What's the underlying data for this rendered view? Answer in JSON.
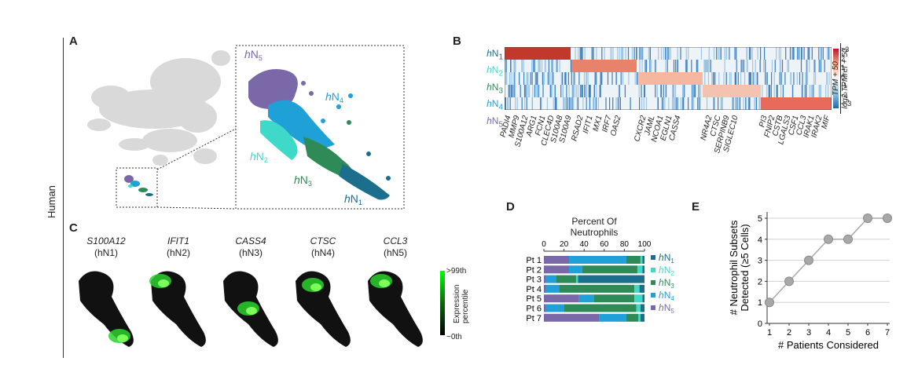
{
  "side_label": "Human",
  "panels": {
    "A": {
      "letter": "A",
      "clusters": [
        {
          "label": "hN1",
          "color": "#1b6e8c"
        },
        {
          "label": "hN2",
          "color": "#3fd9c9"
        },
        {
          "label": "hN3",
          "color": "#2e8b57"
        },
        {
          "label": "hN4",
          "color": "#1fa0d6"
        },
        {
          "label": "hN5",
          "color": "#7b68a8"
        }
      ]
    },
    "B": {
      "letter": "B",
      "rows": [
        "hN1",
        "hN2",
        "hN3",
        "hN4",
        "hN5"
      ],
      "colorbar_ticks": [
        ">3",
        "2",
        "1",
        "0",
        "-1",
        "-2",
        "<-3"
      ],
      "colorbar_label_top": "TPM + 50",
      "colorbar_label_bottom": "log2 TPMref + 50",
      "gene_groups": [
        [
          "PADI4",
          "MMP9",
          "S100A12",
          "ARG1",
          "FCN1",
          "CLEC4D",
          "S100A8",
          "S100A9"
        ],
        [
          "RSAD2",
          "IFIT1",
          "MX1",
          "IRF7",
          "OAS2"
        ],
        [
          "CXCR2",
          "JAML",
          "NCOA1",
          "EGLN1",
          "CASS4"
        ],
        [
          "NR4A2",
          "CTSC",
          "SERPINB9",
          "SIGLEC10"
        ],
        [
          "PI3",
          "FNIP2",
          "CSTB",
          "LGALS3",
          "CSF1",
          "CCL3",
          "IRAK1",
          "IRAK2",
          "MIF"
        ]
      ]
    },
    "C": {
      "letter": "C",
      "maps": [
        {
          "gene": "S100A12",
          "cluster": "(hN1)"
        },
        {
          "gene": "IFIT1",
          "cluster": "(hN2)"
        },
        {
          "gene": "CASS4",
          "cluster": "(hN3)"
        },
        {
          "gene": "CTSC",
          "cluster": "(hN4)"
        },
        {
          "gene": "CCL3",
          "cluster": "(hN5)"
        }
      ],
      "colorbar_top": ">99th",
      "colorbar_bottom": "~0th",
      "colorbar_label": "Expression percentile"
    },
    "D": {
      "letter": "D",
      "title_line1": "Percent Of",
      "title_line2": "Neutrophils",
      "axis_ticks": [
        "0",
        "20",
        "40",
        "60",
        "80",
        "100"
      ],
      "patients": [
        "Pt 1",
        "Pt 2",
        "Pt 3",
        "Pt 4",
        "Pt 5",
        "Pt 6",
        "Pt 7"
      ],
      "legend": [
        "hN1",
        "hN2",
        "hN3",
        "hN4",
        "hN5"
      ]
    },
    "E": {
      "letter": "E",
      "ylabel_line1": "# Neutrophil Subsets",
      "ylabel_line2": "Detected (≥5 Cells)",
      "xlabel": "# Patients Considered"
    }
  },
  "chart_data": [
    {
      "type": "bar",
      "stacked": true,
      "orientation": "horizontal",
      "categories": [
        "Pt 1",
        "Pt 2",
        "Pt 3",
        "Pt 4",
        "Pt 5",
        "Pt 6",
        "Pt 7"
      ],
      "title": "Percent Of Neutrophils",
      "xlim": [
        0,
        100
      ],
      "series": [
        {
          "name": "hN5",
          "color": "#7b68a8",
          "values": [
            25,
            25,
            2,
            2,
            35,
            2,
            55
          ]
        },
        {
          "name": "hN4",
          "color": "#1fa0d6",
          "values": [
            57,
            13,
            10,
            13,
            15,
            18,
            27
          ]
        },
        {
          "name": "hN3",
          "color": "#2e8b57",
          "values": [
            14,
            55,
            20,
            75,
            40,
            72,
            12
          ]
        },
        {
          "name": "hN2",
          "color": "#3fd9c9",
          "values": [
            2,
            5,
            2,
            5,
            8,
            4,
            2
          ]
        },
        {
          "name": "hN1",
          "color": "#1b6e8c",
          "values": [
            2,
            2,
            66,
            5,
            2,
            4,
            4
          ]
        }
      ]
    },
    {
      "type": "line",
      "x": [
        1,
        2,
        3,
        4,
        5,
        6,
        7
      ],
      "y": [
        1,
        2,
        3,
        4,
        4,
        5,
        5
      ],
      "xlabel": "# Patients Considered",
      "ylabel": "# Neutrophil Subsets Detected (≥5 Cells)",
      "xlim": [
        1,
        7
      ],
      "ylim": [
        0,
        5
      ],
      "yticks": [
        0,
        1,
        2,
        3,
        4,
        5
      ],
      "grid": true
    }
  ]
}
